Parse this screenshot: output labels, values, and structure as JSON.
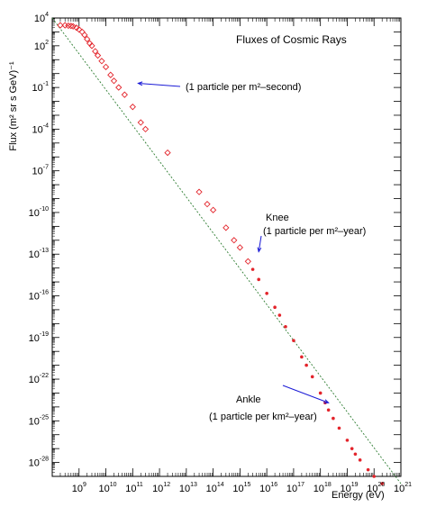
{
  "chart_data": {
    "type": "scatter",
    "title": "Fluxes of Cosmic Rays",
    "xlabel": "Energy (eV)",
    "ylabel": "Flux (m² sr s GeV)⁻¹",
    "x_scale": "log",
    "y_scale": "log",
    "xlim": [
      100000000.0,
      1e+21
    ],
    "ylim": [
      1e-29,
      10000.0
    ],
    "grid": false,
    "x_ticks": [
      {
        "base": "10",
        "exp": "9"
      },
      {
        "base": "10",
        "exp": "10"
      },
      {
        "base": "10",
        "exp": "11"
      },
      {
        "base": "10",
        "exp": "12"
      },
      {
        "base": "10",
        "exp": "13"
      },
      {
        "base": "10",
        "exp": "14"
      },
      {
        "base": "10",
        "exp": "15"
      },
      {
        "base": "10",
        "exp": "16"
      },
      {
        "base": "10",
        "exp": "17"
      },
      {
        "base": "10",
        "exp": "18"
      },
      {
        "base": "10",
        "exp": "19"
      },
      {
        "base": "10",
        "exp": "20"
      },
      {
        "base": "10",
        "exp": "21"
      }
    ],
    "y_ticks": [
      {
        "base": "10",
        "exp": "4"
      },
      {
        "base": "10",
        "exp": "2"
      },
      {
        "base": "10",
        "exp": "-1"
      },
      {
        "base": "10",
        "exp": "-4"
      },
      {
        "base": "10",
        "exp": "-7"
      },
      {
        "base": "10",
        "exp": "-10"
      },
      {
        "base": "10",
        "exp": "-13"
      },
      {
        "base": "10",
        "exp": "-16"
      },
      {
        "base": "10",
        "exp": "-19"
      },
      {
        "base": "10",
        "exp": "-22"
      },
      {
        "base": "10",
        "exp": "-25"
      },
      {
        "base": "10",
        "exp": "-28"
      }
    ],
    "reference_line": {
      "style": "dashed",
      "color": "#2e7d32",
      "points": [
        [
          100000000.0,
          10000.0
        ],
        [
          1e+21,
          3e-30
        ]
      ]
    },
    "series": [
      {
        "marker": "diamond-open",
        "color": "#e3242b",
        "points": [
          [
            200000000.0,
            3000.0
          ],
          [
            300000000.0,
            3000.0
          ],
          [
            400000000.0,
            2800.0
          ],
          [
            500000000.0,
            2700.0
          ],
          [
            600000000.0,
            2500.0
          ],
          [
            800000000.0,
            2000.0
          ],
          [
            1000000000.0,
            1500.0
          ],
          [
            1300000000.0,
            1000.0
          ],
          [
            1600000000.0,
            600.0
          ],
          [
            2000000000.0,
            300.0
          ],
          [
            2500000000.0,
            150.0
          ],
          [
            3000000000.0,
            100.0
          ],
          [
            4000000000.0,
            40.0
          ],
          [
            5000000000.0,
            20.0
          ],
          [
            7000000000.0,
            8
          ],
          [
            10000000000.0,
            3
          ],
          [
            15000000000.0,
            0.8
          ],
          [
            20000000000.0,
            0.3
          ],
          [
            30000000000.0,
            0.1
          ],
          [
            50000000000.0,
            0.03
          ],
          [
            100000000000.0,
            0.004
          ],
          [
            200000000000.0,
            0.0003
          ],
          [
            300000000000.0,
            0.0001
          ],
          [
            2000000000000.0,
            2e-06
          ],
          [
            30000000000000.0,
            3e-09
          ],
          [
            60000000000000.0,
            4e-10
          ],
          [
            100000000000000.0,
            1.5e-10
          ],
          [
            300000000000000.0,
            8e-12
          ],
          [
            600000000000000.0,
            1e-12
          ],
          [
            1000000000000000.0,
            3e-13
          ],
          [
            2000000000000000.0,
            3e-14
          ]
        ]
      },
      {
        "marker": "dot",
        "color": "#e3242b",
        "points": [
          [
            3000000000000000.0,
            8e-15
          ],
          [
            5000000000000000.0,
            1.5e-15
          ],
          [
            1e+16,
            1.5e-16
          ],
          [
            2e+16,
            1.5e-17
          ],
          [
            3e+16,
            4e-18
          ],
          [
            5e+16,
            6e-19
          ],
          [
            1e+17,
            6e-20
          ],
          [
            2e+17,
            4e-21
          ],
          [
            3e+17,
            1e-21
          ],
          [
            5e+17,
            1.5e-22
          ],
          [
            1e+18,
            1e-23
          ],
          [
            1.5e+18,
            2e-24
          ],
          [
            2e+18,
            6e-25
          ],
          [
            3e+18,
            1.5e-25
          ],
          [
            5e+18,
            3e-26
          ],
          [
            1e+19,
            4e-27
          ],
          [
            1.5e+19,
            1e-27
          ],
          [
            2e+19,
            4e-28
          ],
          [
            3e+19,
            1.5e-28
          ],
          [
            6e+19,
            3e-29
          ],
          [
            1e+20,
            1e-29
          ],
          [
            2e+20,
            3e-30
          ]
        ]
      }
    ],
    "annotations": [
      {
        "text": "(1 particle per m²–second)",
        "arrow_to": [
          160000000000.0,
          0.2
        ]
      },
      {
        "text": "Knee",
        "arrow_to": null
      },
      {
        "text": "(1 particle per m²–year)",
        "arrow_to": [
          5000000000000000.0,
          1.5e-13
        ]
      },
      {
        "text": "Ankle",
        "arrow_to": [
          2e+18,
          2e-24
        ]
      },
      {
        "text": "(1 particle per km²–year)",
        "arrow_to": null
      }
    ]
  }
}
